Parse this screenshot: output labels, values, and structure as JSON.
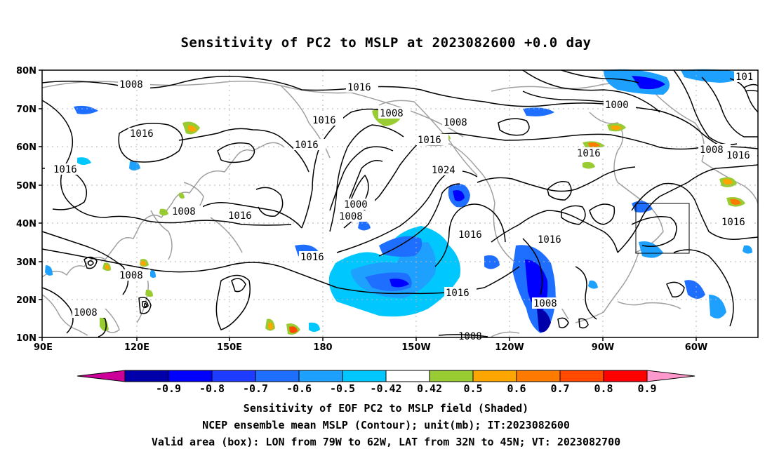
{
  "title": "Sensitivity of PC2 to MSLP at 2023082600 +0.0 day",
  "lat_labels": [
    "80N",
    "70N",
    "60N",
    "50N",
    "40N",
    "30N",
    "20N",
    "10N"
  ],
  "lon_labels": [
    "90E",
    "120E",
    "150E",
    "180",
    "150W",
    "120W",
    "90W",
    "60W"
  ],
  "contour_labels": [
    "1008",
    "1016",
    "1016",
    "1008",
    "1016",
    "1008",
    "1000",
    "1008",
    "1016",
    "1016",
    "1016",
    "1016",
    "1016",
    "1024",
    "1000",
    "1008",
    "1016",
    "1016",
    "1016",
    "1016",
    "1008",
    "1008",
    "1016",
    "1008",
    "1016",
    "1008",
    "101"
  ],
  "colorbar": {
    "labels": [
      "-0.9",
      "-0.8",
      "-0.7",
      "-0.6",
      "-0.5",
      "-0.42",
      "0.42",
      "0.5",
      "0.6",
      "0.7",
      "0.8",
      "0.9"
    ],
    "colors": [
      "#cc0099",
      "#0000aa",
      "#0000ff",
      "#1e3cff",
      "#1e6eff",
      "#1ea0ff",
      "#00c8ff",
      "#ffffff",
      "#99cc33",
      "#ffa500",
      "#ff7b00",
      "#ff4a00",
      "#ff0000",
      "#ff99cc"
    ]
  },
  "valid_box": {
    "lon_west": "79W",
    "lon_east": "62W",
    "lat_south": "32N",
    "lat_north": "45N"
  },
  "captions": [
    "Sensitivity of EOF PC2 to MSLP field (Shaded)",
    "NCEP ensemble mean MSLP (Contour); unit(mb); IT:2023082600",
    "Valid area (box): LON from 79W to 62W, LAT from 32N to 45N; VT: 2023082700"
  ]
}
